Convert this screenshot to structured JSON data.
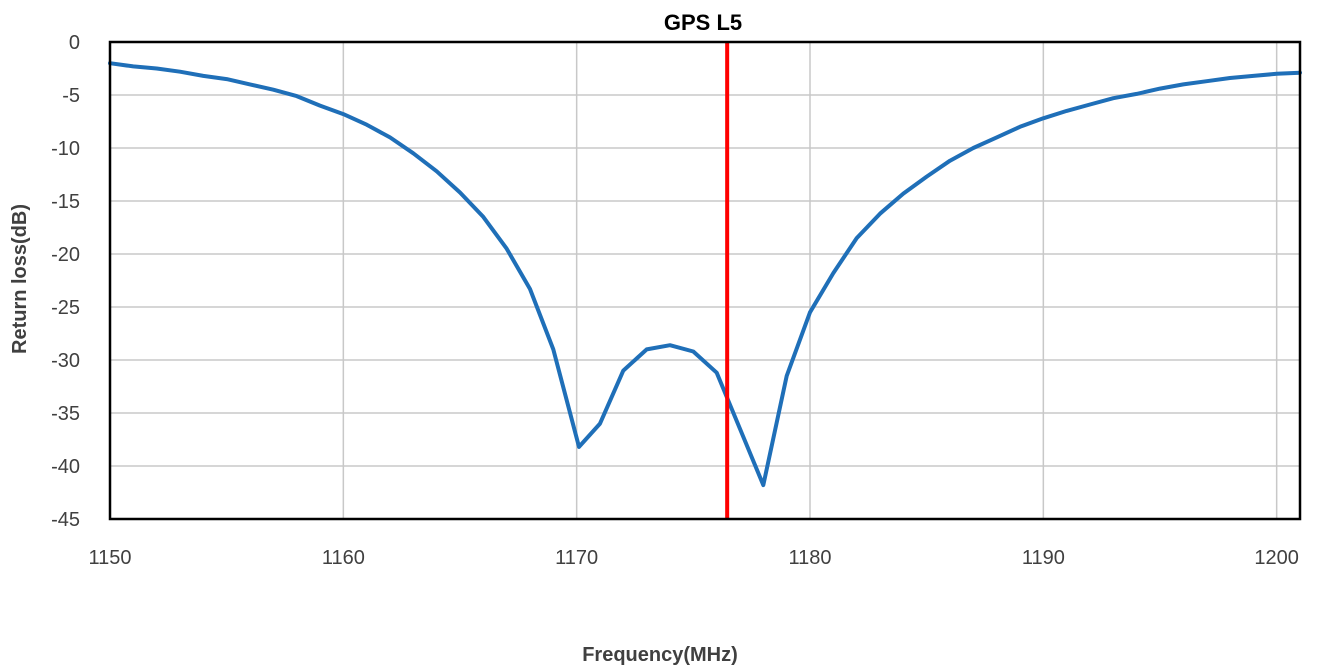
{
  "chart_data": {
    "type": "line",
    "title": "GPS L5",
    "xlabel": "Frequency(MHz)",
    "ylabel": "Return loss(dB)",
    "xlim": [
      1150,
      1201
    ],
    "ylim": [
      -45,
      0
    ],
    "x_ticks": [
      1150,
      1160,
      1170,
      1180,
      1190,
      1200
    ],
    "y_ticks": [
      0,
      -5,
      -10,
      -15,
      -20,
      -25,
      -30,
      -35,
      -40,
      -45
    ],
    "x_tick_labels": [
      "1150",
      "1160",
      "1170",
      "1180",
      "1190",
      "1200"
    ],
    "y_tick_labels": [
      "0",
      "-5",
      "-10",
      "-15",
      "-20",
      "-25",
      "-30",
      "-35",
      "-40",
      "-45"
    ],
    "grid": true,
    "colors": {
      "series": "#1f6fb8",
      "marker": "#ff0000",
      "grid": "#c8c8c8",
      "frame": "#000000"
    },
    "series": [
      {
        "x": [
          1150,
          1151,
          1152,
          1153,
          1154,
          1155,
          1156,
          1157,
          1158,
          1159,
          1160,
          1161,
          1162,
          1163,
          1164,
          1165,
          1166,
          1167,
          1168,
          1169,
          1170.1,
          1171,
          1172,
          1173,
          1174,
          1175,
          1176,
          1177,
          1178,
          1179,
          1180,
          1181,
          1182,
          1183,
          1184,
          1185,
          1186,
          1187,
          1188,
          1189,
          1190,
          1191,
          1192,
          1193,
          1194,
          1195,
          1196,
          1197,
          1198,
          1199,
          1200,
          1201
        ],
        "y": [
          -2.0,
          -2.3,
          -2.5,
          -2.8,
          -3.2,
          -3.5,
          -4.0,
          -4.5,
          -5.1,
          -6.0,
          -6.8,
          -7.8,
          -9.0,
          -10.5,
          -12.2,
          -14.2,
          -16.5,
          -19.5,
          -23.3,
          -29.0,
          -38.2,
          -36.0,
          -31.0,
          -29.0,
          -28.6,
          -29.2,
          -31.2,
          -36.5,
          -41.8,
          -31.5,
          -25.5,
          -21.8,
          -18.5,
          -16.2,
          -14.3,
          -12.7,
          -11.2,
          -10.0,
          -9.0,
          -8.0,
          -7.2,
          -6.5,
          -5.9,
          -5.3,
          -4.9,
          -4.4,
          -4.0,
          -3.7,
          -3.4,
          -3.2,
          -3.0,
          -2.9
        ]
      }
    ],
    "marker_line": {
      "x": 1176.45
    }
  }
}
